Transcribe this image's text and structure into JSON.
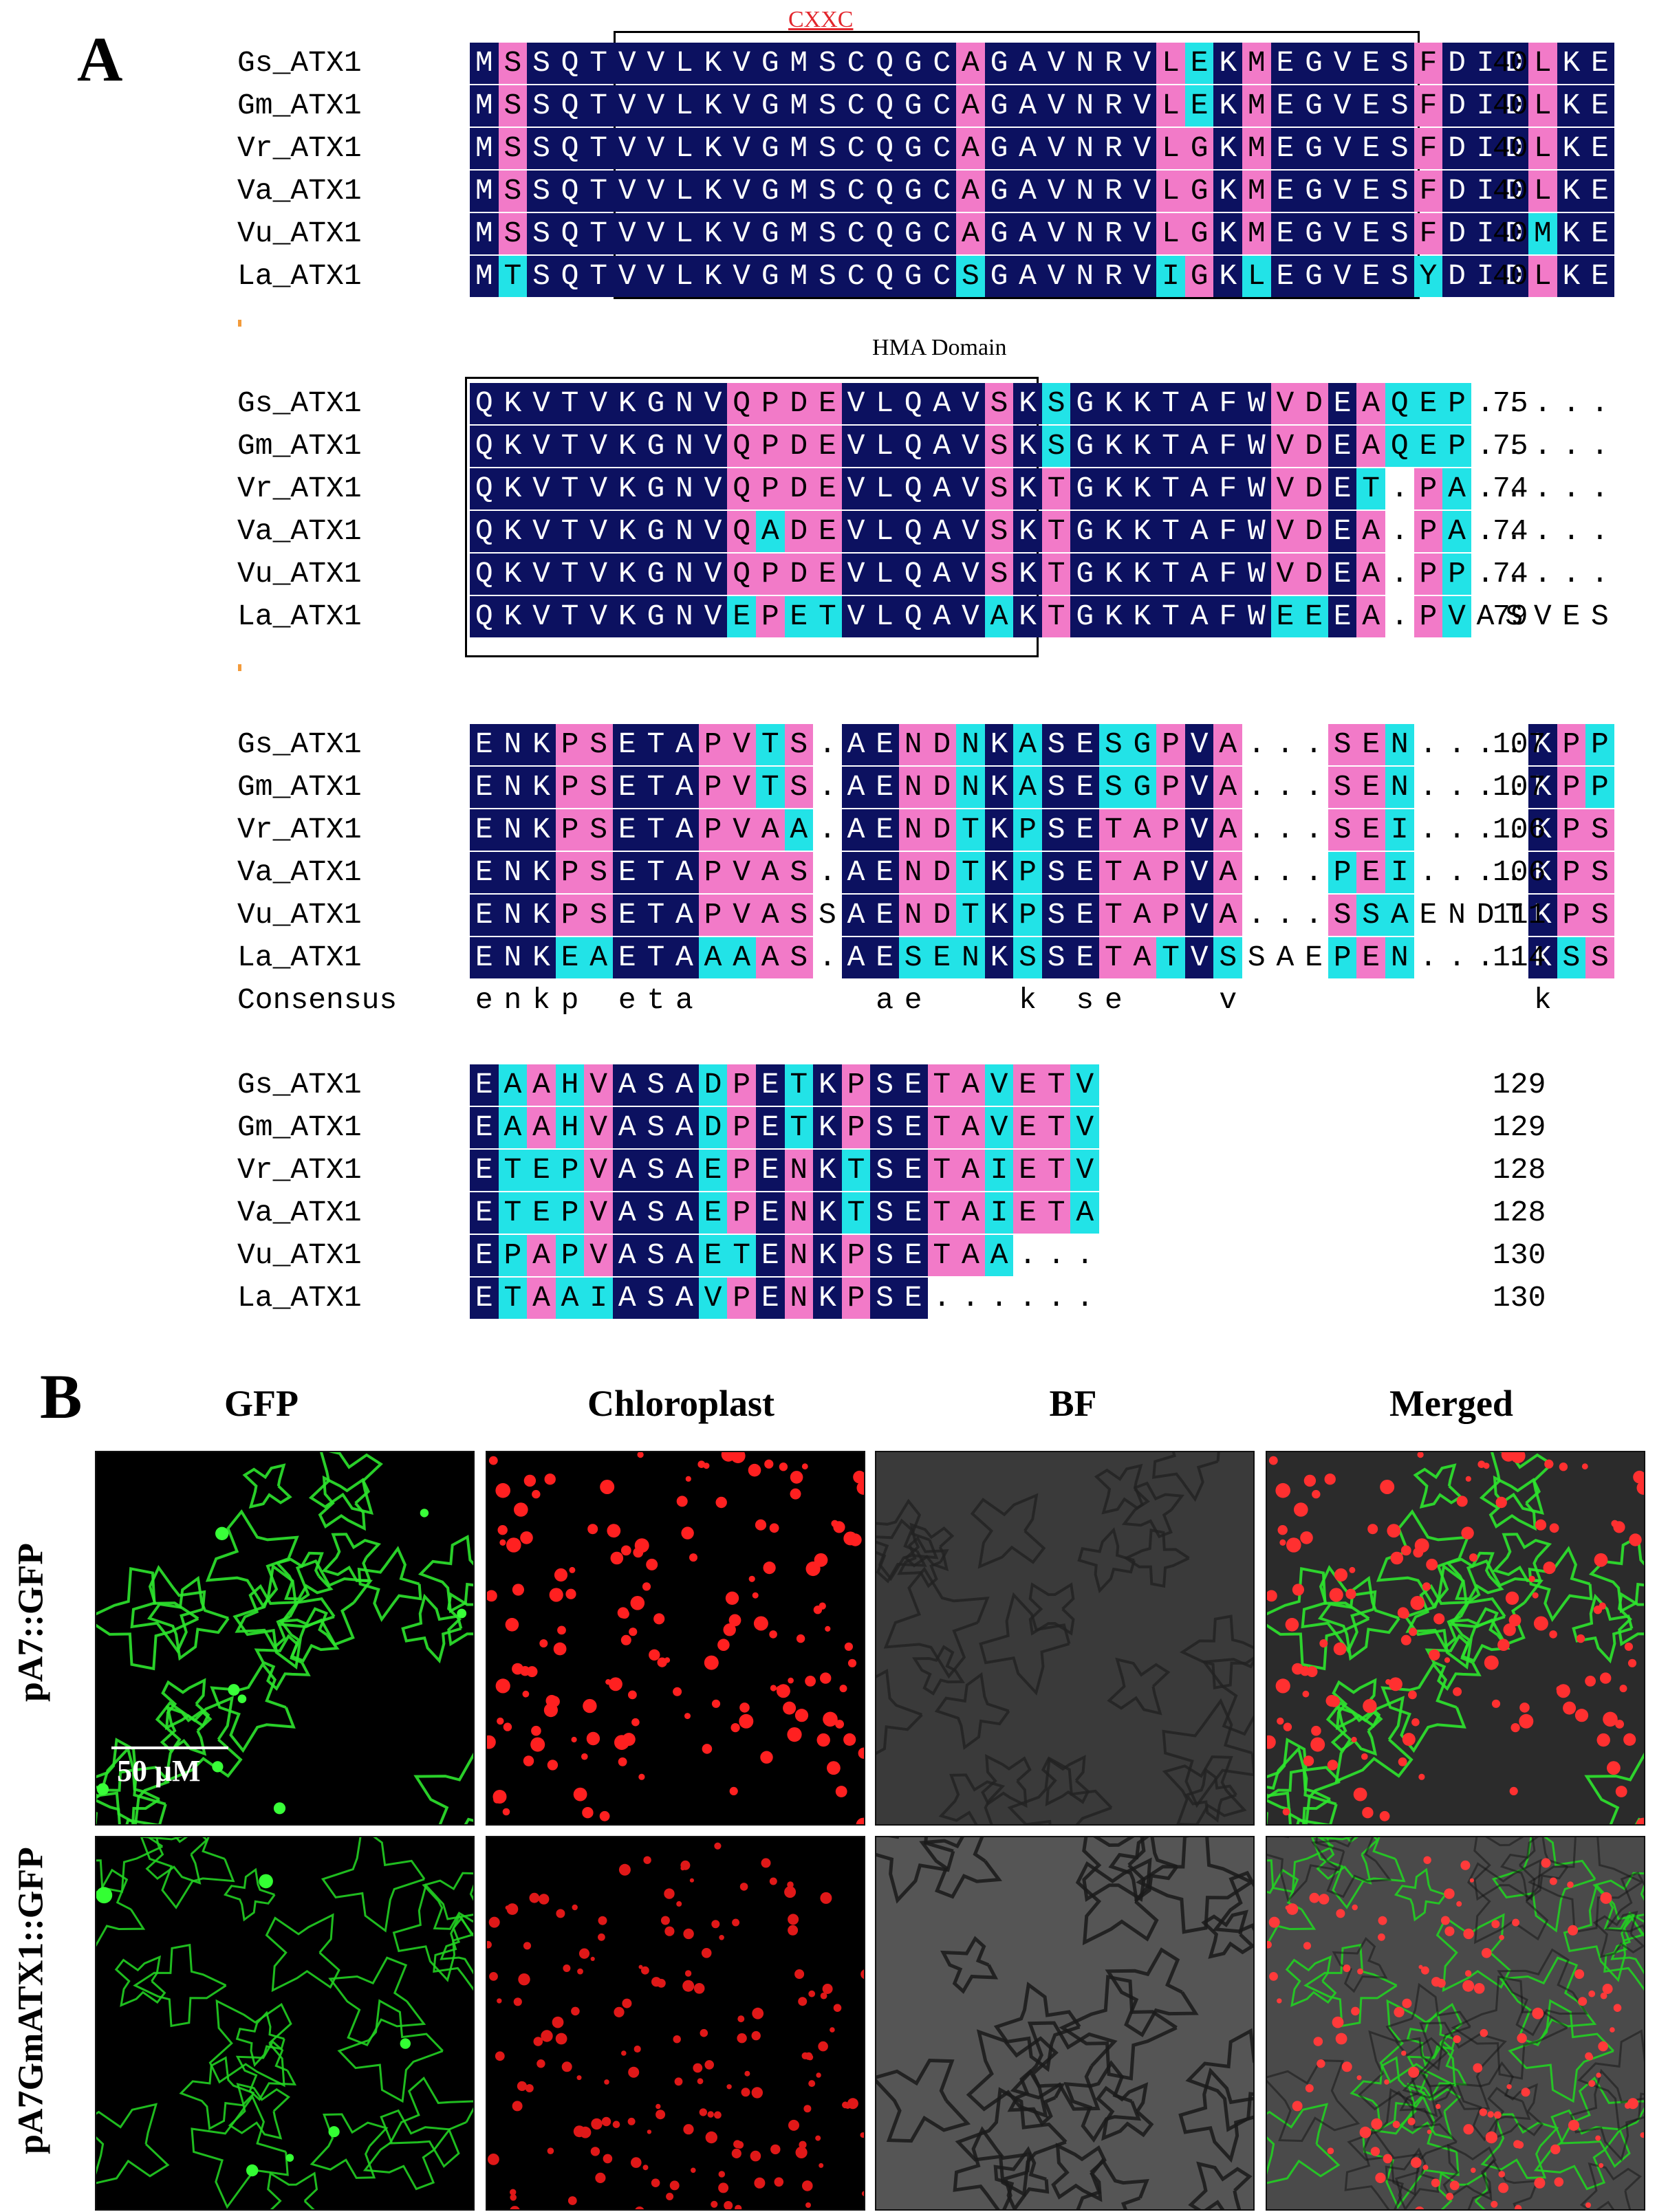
{
  "panel_a": {
    "letter": "A",
    "cxxc_label": "CXXC",
    "domain_label": "HMA Domain",
    "blocks": [
      {
        "rows": [
          {
            "name": "Gs_ATX1",
            "seq": "MSSQTVVLKVGMSCQGCAGAVNRVLEKMEGVESFDIDLKE",
            "end": "40"
          },
          {
            "name": "Gm_ATX1",
            "seq": "MSSQTVVLKVGMSCQGCAGAVNRVLEKMEGVESFDIDLKE",
            "end": "40"
          },
          {
            "name": "Vr_ATX1",
            "seq": "MSSQTVVLKVGMSCQGCAGAVNRVLGKMEGVESFDIDLKE",
            "end": "40"
          },
          {
            "name": "Va_ATX1",
            "seq": "MSSQTVVLKVGMSCQGCAGAVNRVLGKMEGVESFDIDLKE",
            "end": "40"
          },
          {
            "name": "Vu_ATX1",
            "seq": "MSSQTVVLKVGMSCQGCAGAVNRVLGKMEGVESFDIDMKE",
            "end": "40"
          },
          {
            "name": "La_ATX1",
            "seq": "MTSQTVVLKVGMSCQGCSGAVNRVIGKLEGVESYDIDLKE",
            "end": "40"
          }
        ]
      },
      {
        "rows": [
          {
            "name": "Gs_ATX1",
            "seq": "QKVTVKGNVQPDEVLQAVSKSGKKTAFWVDEAQEP.....",
            "end": "75"
          },
          {
            "name": "Gm_ATX1",
            "seq": "QKVTVKGNVQPDEVLQAVSKSGKKTAFWVDEAQEP.....",
            "end": "75"
          },
          {
            "name": "Vr_ATX1",
            "seq": "QKVTVKGNVQPDEVLQAVSKTGKKTAFWVDET.PA.....",
            "end": "74"
          },
          {
            "name": "Va_ATX1",
            "seq": "QKVTVKGNVQADEVLQAVSKTGKKTAFWVDEA.PA.....",
            "end": "74"
          },
          {
            "name": "Vu_ATX1",
            "seq": "QKVTVKGNVQPDEVLQAVSKTGKKTAFWVDEA.PP.....",
            "end": "74"
          },
          {
            "name": "La_ATX1",
            "seq": "QKVTVKGNVEPETVLQAVAKTGKKTAFWEEEA.PVASVES",
            "end": "79"
          }
        ]
      },
      {
        "rows": [
          {
            "name": "Gs_ATX1",
            "seq": "ENKPSETAPVTS.AENDNKASESGPVA...SEN....KPP",
            "end": "107"
          },
          {
            "name": "Gm_ATX1",
            "seq": "ENKPSETAPVTS.AENDNKASESGPVA...SEN....KPP",
            "end": "107"
          },
          {
            "name": "Vr_ATX1",
            "seq": "ENKPSETAPVAA.AENDTKPSETAPVA...SEI....KPS",
            "end": "106"
          },
          {
            "name": "Va_ATX1",
            "seq": "ENKPSETAPVAS.AENDTKPSETAPVA...PEI....KPS",
            "end": "106"
          },
          {
            "name": "Vu_ATX1",
            "seq": "ENKPSETAPVASSAENDTKPSETAPVA...SSAENDTKPS",
            "end": "111"
          },
          {
            "name": "La_ATX1",
            "seq": "ENKEAETAAAAS.AESENKSSETATVSSAEPEN....KSS",
            "end": "114"
          }
        ],
        "consensus": {
          "name": "Consensus",
          "seq": "enkp eta      ae   k se   v          k  "
        }
      },
      {
        "rows": [
          {
            "name": "Gs_ATX1",
            "seq": "EAAHVASADPETKPSETAVETV",
            "end": "129"
          },
          {
            "name": "Gm_ATX1",
            "seq": "EAAHVASADPETKPSETAVETV",
            "end": "129"
          },
          {
            "name": "Vr_ATX1",
            "seq": "ETEPVASAEPENKTSETAIETV",
            "end": "128"
          },
          {
            "name": "Va_ATX1",
            "seq": "ETEPVASAEPENKTSETAIETA",
            "end": "128"
          },
          {
            "name": "Vu_ATX1",
            "seq": "EPAPVASAETENKPSETAA...",
            "end": "130"
          },
          {
            "name": "La_ATX1",
            "seq": "ETAAIASAVPENKPSE......",
            "end": "130"
          }
        ]
      }
    ],
    "colors": {
      "identical": "#0c1160",
      "similar_high": "#f27ac8",
      "similar_low": "#22e3e7"
    }
  },
  "panel_b": {
    "letter": "B",
    "columns": [
      "GFP",
      "Chloroplast",
      "BF",
      "Merged"
    ],
    "rows": [
      "pA7::GFP",
      "pA7GmATX1::GFP"
    ],
    "scale_label": "50 μM"
  }
}
